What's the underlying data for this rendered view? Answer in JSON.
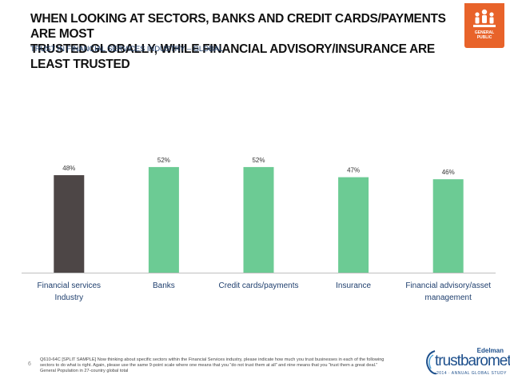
{
  "header": {
    "title_line1": "WHEN LOOKING AT SECTORS, BANKS AND CREDIT CARDS/PAYMENTS ARE MOST",
    "title_line2": "TRUSTED GLOBALLY, WHILE FINANCIAL ADVISORY/INSURANCE ARE LEAST TRUSTED",
    "subtitle": "TRUST IN FINANCIAL SERVICES INDUSTRY – GLOBAL"
  },
  "logo": {
    "line1": "GENERAL",
    "line2": "PUBLIC",
    "icon": "people-group-icon"
  },
  "chart_data": {
    "type": "bar",
    "categories": [
      [
        "Financial services",
        "Industry"
      ],
      [
        "Banks"
      ],
      [
        "Credit cards/payments"
      ],
      [
        "Insurance"
      ],
      [
        "Financial advisory/asset",
        "management"
      ]
    ],
    "values": [
      48,
      52,
      52,
      47,
      46
    ],
    "data_labels": [
      "48%",
      "52%",
      "52%",
      "47%",
      "46%"
    ],
    "colors": [
      "#4d4646",
      "#6ccb94",
      "#6ccb94",
      "#6ccb94",
      "#6ccb94"
    ],
    "ylim": [
      0,
      100
    ],
    "grid": false,
    "legend": "none"
  },
  "footer": {
    "page_number": "6",
    "note_line1": "Q610-64C [SPLIT SAMPLE] Now thinking about specific sectors within the Financial Services industry, please indicate how much you trust businesses in each of the following",
    "note_line2": "sectors to do what is right. Again, please use the same 9-point scale where one means that you “do not trust them at all” and nine means that you “trust them a great deal.”",
    "note_line3": "General Population in 27-country global total",
    "brand_company": "Edelman",
    "brand_name": "trustbarometer",
    "brand_sub": "2014 · ANNUAL GLOBAL STUDY"
  }
}
